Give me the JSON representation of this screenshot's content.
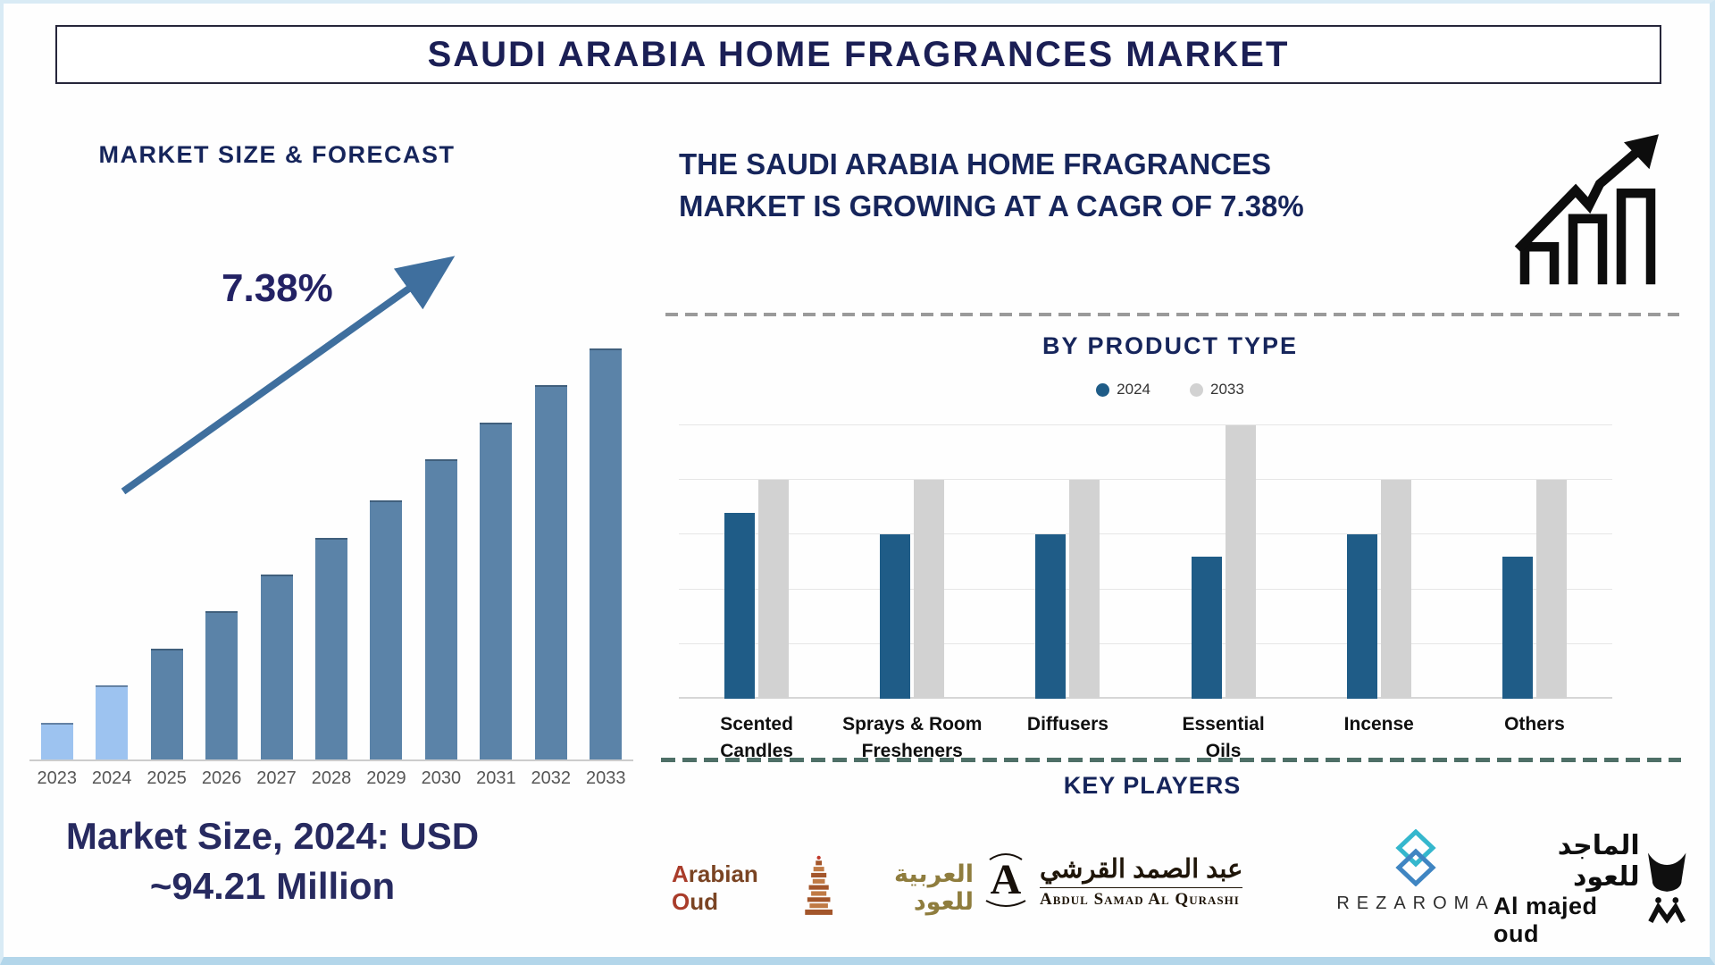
{
  "page": {
    "title": "SAUDI ARABIA HOME FRAGRANCES MARKET"
  },
  "left_panel": {
    "heading": "MARKET SIZE & FORECAST",
    "cagr_annotation": "7.38%",
    "market_size_note_line1": "Market Size, 2024: USD",
    "market_size_note_line2": "~94.21 Million"
  },
  "right_panel": {
    "growth_statement": "THE SAUDI ARABIA HOME FRAGRANCES MARKET IS GROWING AT A CAGR OF 7.38%",
    "product_chart_title": "BY PRODUCT TYPE",
    "key_players_title": "KEY PLAYERS"
  },
  "key_players": {
    "arabian_oud": {
      "name_en": "Arabian Oud",
      "name_ar": "العربية للعود"
    },
    "abdul_samad": {
      "name_ar": "عبد الصمد القرشي",
      "name_en": "Abdul Samad Al Qurashi"
    },
    "rezaroma": {
      "name": "REZAROMA"
    },
    "al_majed": {
      "name_ar": "الماجد للعود",
      "name_en": "Al majed oud"
    }
  },
  "colors": {
    "heading_navy": "#16255b",
    "bar_light_blue": "#9dc3f0",
    "bar_steel_blue": "#5b83a8",
    "bar_2024_blue": "#1f5c87",
    "bar_2033_gray": "#d2d2d2",
    "trend_arrow": "#3f6f9e",
    "divider_gray": "#9a9a9a",
    "divider_teal": "#4e6f67",
    "page_border": "#b3d6ea"
  },
  "chart_data": [
    {
      "type": "bar",
      "title": "MARKET SIZE & FORECAST",
      "annotation": "7.38%",
      "categories": [
        "2023",
        "2024",
        "2025",
        "2026",
        "2027",
        "2028",
        "2029",
        "2030",
        "2031",
        "2032",
        "2033"
      ],
      "values": [
        9,
        18,
        27,
        36,
        45,
        54,
        63,
        73,
        82,
        91,
        100
      ],
      "value_note": "axis unlabeled; values are relative bar heights (% of 2033 bar); labeled point: 2024 = USD ~94.21 Million; growth annotation 7.38% CAGR",
      "bar_colors": [
        "#9dc3f0",
        "#9dc3f0",
        "#5b83a8",
        "#5b83a8",
        "#5b83a8",
        "#5b83a8",
        "#5b83a8",
        "#5b83a8",
        "#5b83a8",
        "#5b83a8",
        "#5b83a8"
      ],
      "xlabel": "",
      "ylabel": "",
      "grid": false,
      "legend": false
    },
    {
      "type": "bar",
      "title": "BY PRODUCT TYPE",
      "categories": [
        "Scented\nCandles",
        "Sprays & Room\nFresheners",
        "Diffusers",
        "Essential\nOils",
        "Incense",
        "Others"
      ],
      "series": [
        {
          "name": "2024",
          "color": "#1f5c87",
          "values": [
            3.4,
            3.0,
            3.0,
            2.6,
            3.0,
            2.6
          ]
        },
        {
          "name": "2033",
          "color": "#d2d2d2",
          "values": [
            4.0,
            4.0,
            4.0,
            5.0,
            4.0,
            4.0
          ]
        }
      ],
      "ylim": [
        0,
        5
      ],
      "value_note": "axis unlabeled; values in relative grid units (5 gridline intervals)",
      "grid": true,
      "legend_position": "top",
      "xlabel": "",
      "ylabel": ""
    }
  ]
}
